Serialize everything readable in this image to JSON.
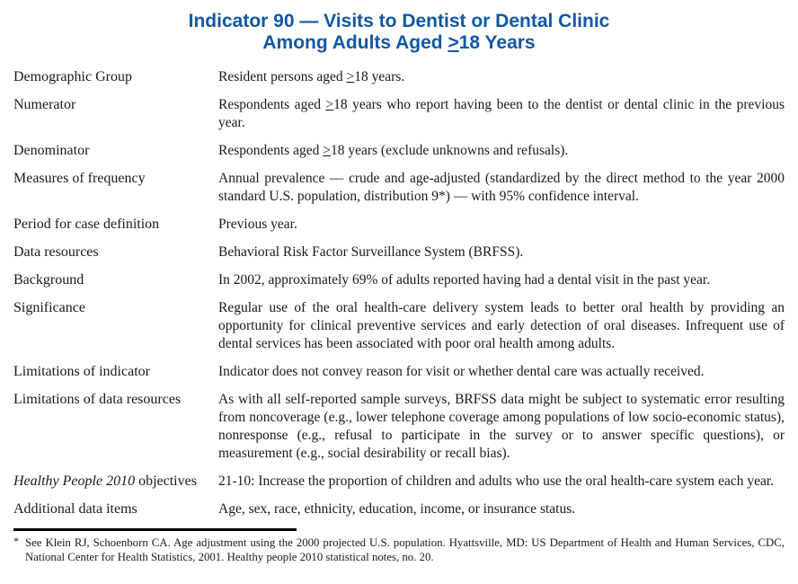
{
  "title": {
    "line1": "Indicator 90 — Visits to Dentist or Dental Clinic",
    "line2": "Among Adults Aged ≥18 Years"
  },
  "colors": {
    "title_blue": "#1257a4",
    "body_text": "#1a1a1a",
    "rule": "#000000"
  },
  "rows": [
    {
      "label": "Demographic Group",
      "text": "Resident persons aged ≥18 years."
    },
    {
      "label": "Numerator",
      "text": "Respondents aged ≥18 years who report having been to the dentist or dental clinic in the previous year."
    },
    {
      "label": "Denominator",
      "text": "Respondents aged ≥18 years (exclude unknowns and refusals)."
    },
    {
      "label": "Measures of frequency",
      "text": "Annual prevalence — crude and age-adjusted (standardized by the direct method to the year 2000 standard U.S. population, distribution 9*) — with 95% confidence interval."
    },
    {
      "label": "Period for case definition",
      "text": "Previous year."
    },
    {
      "label": "Data resources",
      "text": "Behavioral Risk Factor Surveillance System (BRFSS)."
    },
    {
      "label": "Background",
      "text": "In 2002, approximately 69% of adults reported having had a dental visit in the past year."
    },
    {
      "label": "Significance",
      "text": "Regular use of the oral health-care delivery system leads to better oral health by providing an opportunity for clinical preventive services and early detection of oral diseases. Infrequent use of dental services has been associated with poor oral health among adults."
    },
    {
      "label": "Limitations of indicator",
      "text": "Indicator does not convey reason for visit or whether dental care was actually received."
    },
    {
      "label": "Limitations of data resources",
      "text": "As with all self-reported sample surveys, BRFSS data might be subject to systematic error resulting from noncoverage (e.g., lower telephone coverage among populations of low socio-economic status), nonresponse (e.g., refusal to participate in the survey or to answer specific questions), or measurement (e.g., social desirability or recall bias)."
    },
    {
      "label_italic": "Healthy People 2010",
      "label": " objectives",
      "text": "21-10: Increase the proportion of children and adults who use the oral health-care system each year."
    },
    {
      "label": "Additional data items",
      "text": "Age, sex, race, ethnicity, education, income, or insurance status."
    }
  ],
  "footnote": {
    "marker": "*",
    "text": "See Klein RJ, Schoenborn CA. Age adjustment using the 2000 projected U.S. population. Hyattsville, MD: US Department of Health and Human Services, CDC, National Center for Health Statistics, 2001. Healthy people 2010 statistical notes, no. 20."
  }
}
